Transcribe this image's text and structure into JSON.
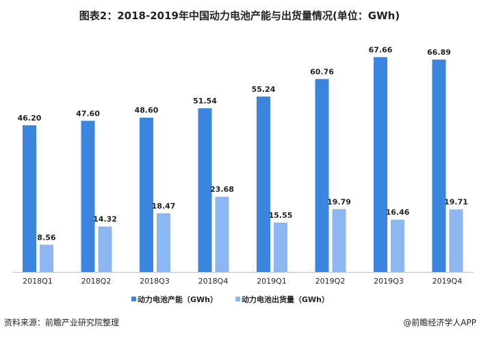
{
  "chart_data": {
    "type": "bar",
    "title": "图表2：2018-2019年中国动力电池产能与出货量情况(单位：GWh)",
    "categories": [
      "2018Q1",
      "2018Q2",
      "2018Q3",
      "2018Q4",
      "2019Q1",
      "2019Q2",
      "2019Q3",
      "2019Q4"
    ],
    "series": [
      {
        "name": "动力电池产能（GWh）",
        "color": "#3c85df",
        "values": [
          46.2,
          47.6,
          48.6,
          51.54,
          55.24,
          60.76,
          67.66,
          66.89
        ]
      },
      {
        "name": "动力电池出货量（GWh）",
        "color": "#8db7f0",
        "values": [
          8.56,
          14.32,
          18.47,
          23.68,
          15.55,
          19.79,
          16.46,
          19.71
        ]
      }
    ],
    "ylim": [
      0,
      70
    ],
    "grid": false,
    "legend": "bottom"
  },
  "footer": {
    "source": "资料来源：前瞻产业研究院整理",
    "credit": "@前瞻经济学人APP"
  }
}
